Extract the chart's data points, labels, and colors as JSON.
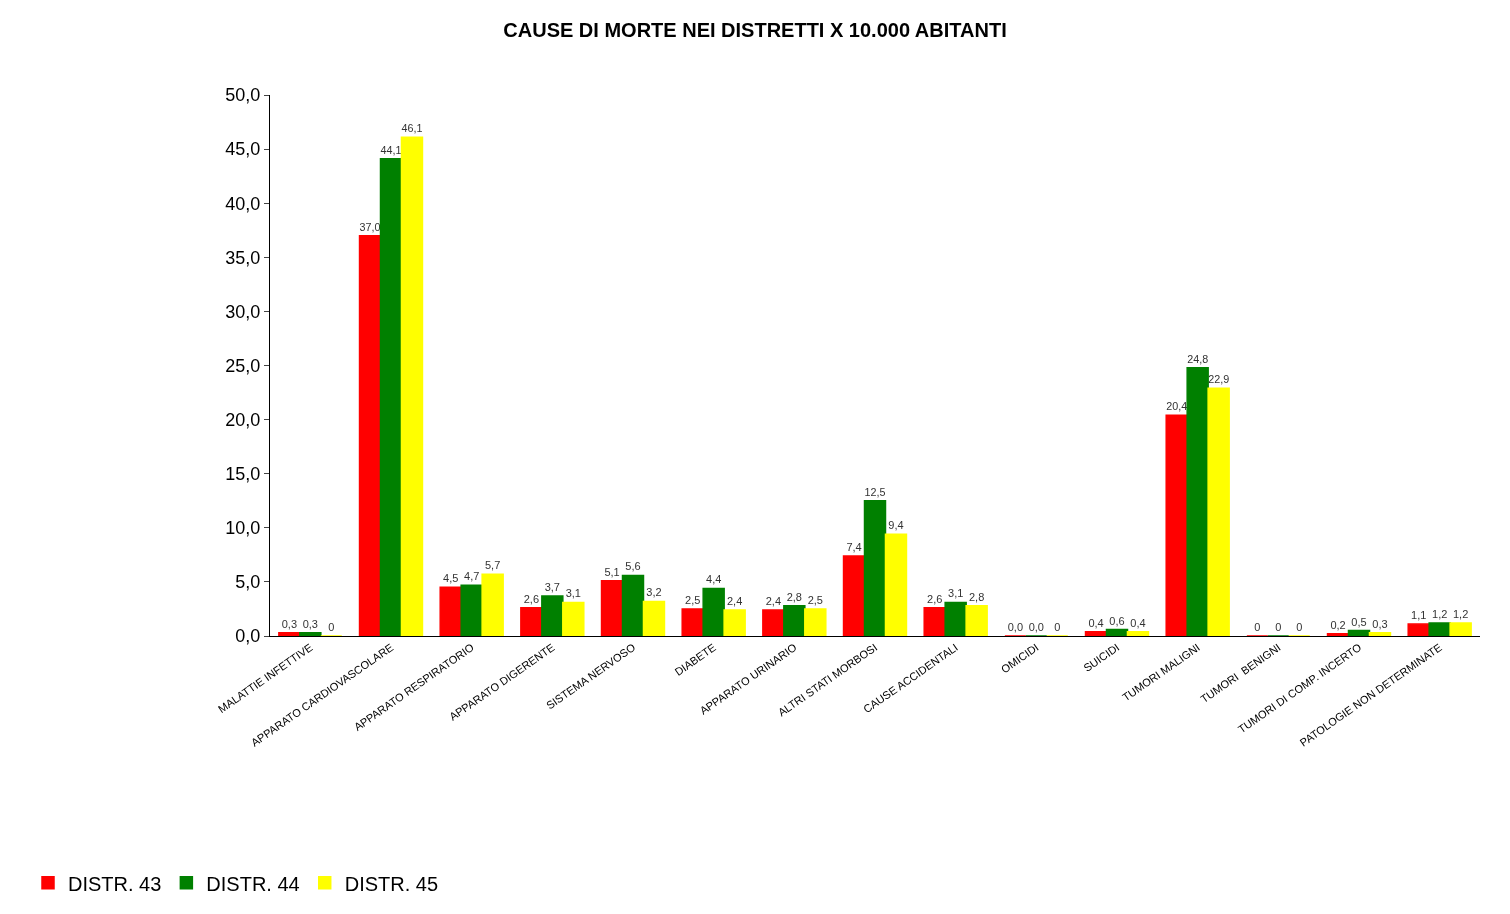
{
  "chart_data": {
    "type": "bar",
    "title": "CAUSE DI MORTE NEI DISTRETTI X 10.000 ABITANTI",
    "categories": [
      "MALATTIE INFETTIVE",
      "APPARATO CARDIOVASCOLARE",
      "APPARATO RESPIRATORIO",
      "APPARATO DIGERENTE",
      "SISTEMA NERVOSO",
      "DIABETE",
      "APPARATO URINARIO",
      "ALTRI STATI MORBOSI",
      "CAUSE ACCIDENTALI",
      "OMICIDI",
      "SUICIDI",
      "TUMORI MALIGNI",
      "TUMORI  BENIGNI",
      "TUMORI DI COMP. INCERTO",
      "PATOLOGIE NON DETERMINATE"
    ],
    "series": [
      {
        "name": "DISTR. 43",
        "color": "#ff0000",
        "values": [
          0.3,
          37.0,
          4.5,
          2.6,
          5.1,
          2.5,
          2.4,
          7.4,
          2.6,
          0.0,
          0.4,
          20.4,
          0,
          0.2,
          1.1
        ],
        "value_labels": [
          "0,3",
          "37,0",
          "4,5",
          "2,6",
          "5,1",
          "2,5",
          "2,4",
          "7,4",
          "2,6",
          "0,0",
          "0,4",
          "20,4",
          "0",
          "0,2",
          "1,1"
        ]
      },
      {
        "name": "DISTR. 44",
        "color": "#008000",
        "values": [
          0.3,
          44.1,
          4.7,
          3.7,
          5.6,
          4.4,
          2.8,
          12.5,
          3.1,
          0.0,
          0.6,
          24.8,
          0,
          0.5,
          1.2
        ],
        "value_labels": [
          "0,3",
          "44,1",
          "4,7",
          "3,7",
          "5,6",
          "4,4",
          "2,8",
          "12,5",
          "3,1",
          "0,0",
          "0,6",
          "24,8",
          "0",
          "0,5",
          "1,2"
        ]
      },
      {
        "name": "DISTR. 45",
        "color": "#ffff00",
        "values": [
          0,
          46.1,
          5.7,
          3.1,
          3.2,
          2.4,
          2.5,
          9.4,
          2.8,
          0,
          0.4,
          22.9,
          0,
          0.3,
          1.2
        ],
        "value_labels": [
          "0",
          "46,1",
          "5,7",
          "3,1",
          "3,2",
          "2,4",
          "2,5",
          "9,4",
          "2,8",
          "0",
          "0,4",
          "22,9",
          "0",
          "0,3",
          "1,2"
        ]
      }
    ],
    "ylim": [
      0,
      50
    ],
    "yticks": [
      {
        "value": 0,
        "label": "0,0"
      },
      {
        "value": 5,
        "label": "5,0"
      },
      {
        "value": 10,
        "label": "10,0"
      },
      {
        "value": 15,
        "label": "15,0"
      },
      {
        "value": 20,
        "label": "20,0"
      },
      {
        "value": 25,
        "label": "25,0"
      },
      {
        "value": 30,
        "label": "30,0"
      },
      {
        "value": 35,
        "label": "35,0"
      },
      {
        "value": 40,
        "label": "40,0"
      },
      {
        "value": 45,
        "label": "45,0"
      },
      {
        "value": 50,
        "label": "50,0"
      }
    ],
    "legend": "bottom left"
  }
}
